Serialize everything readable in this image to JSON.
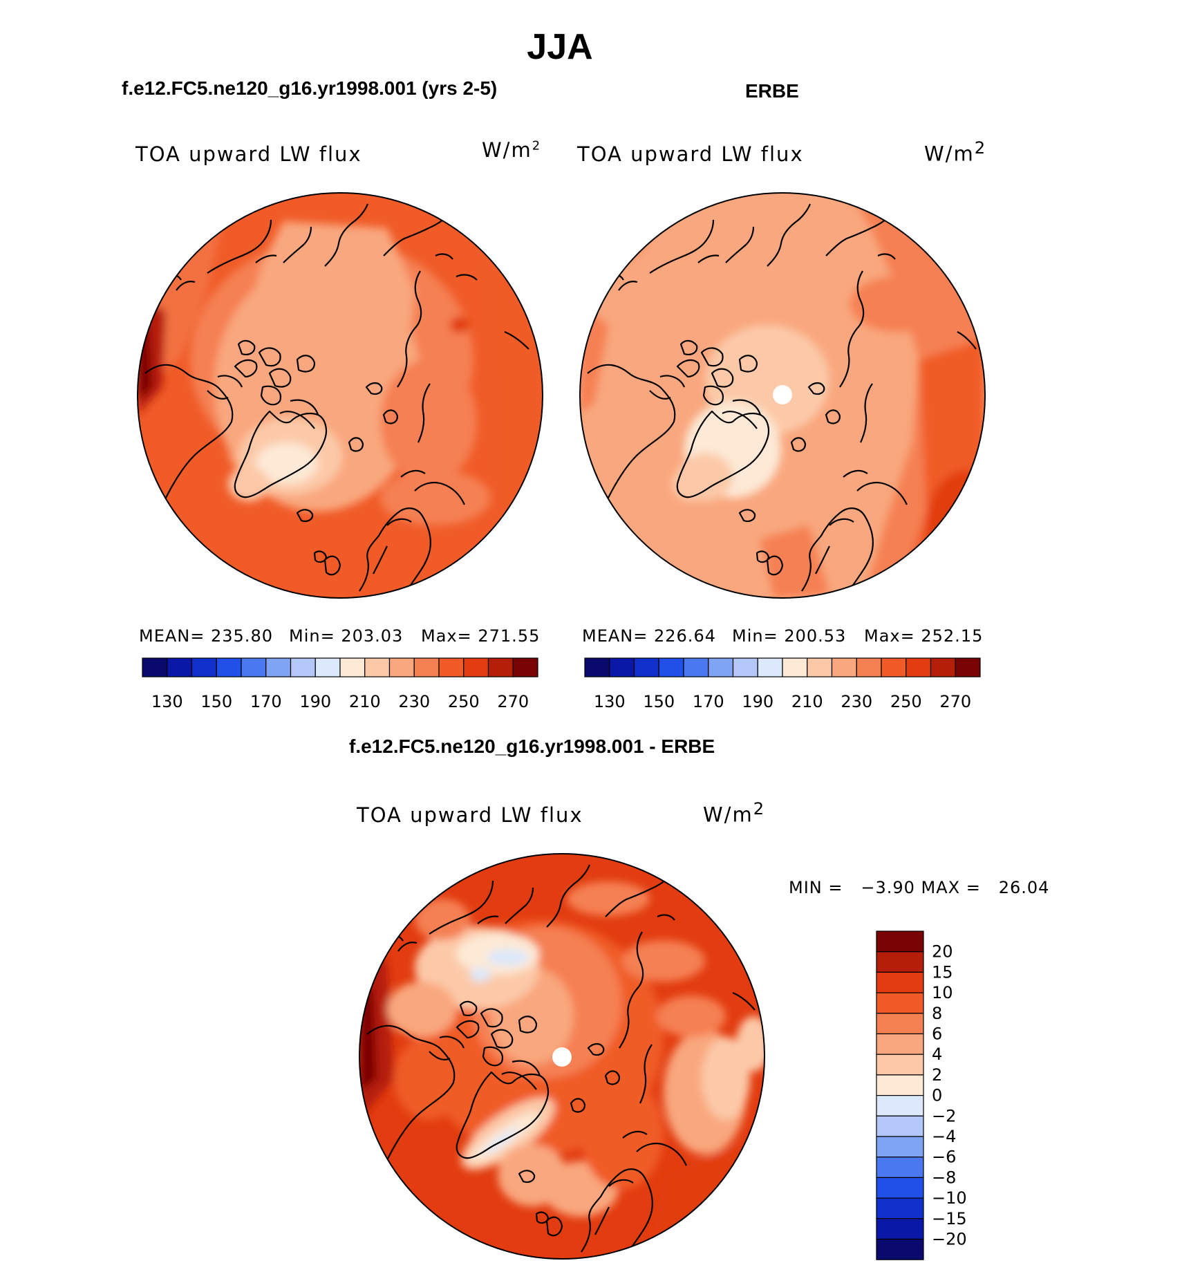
{
  "figure": {
    "title": "JJA",
    "panel_left": {
      "case_title": "f.e12.FC5.ne120_g16.yr1998.001 (yrs 2-5)",
      "variable": "TOA upward LW flux",
      "units": "W/m",
      "units_sup": "2",
      "mean_label": "MEAN=",
      "mean": "235.80",
      "min_label": "Min=",
      "min": "203.03",
      "max_label": "Max=",
      "max": "271.55"
    },
    "panel_right": {
      "case_title": "ERBE",
      "variable": "TOA upward LW flux",
      "units": "W/m",
      "units_sup": "2",
      "mean_label": "MEAN=",
      "mean": "226.64",
      "min_label": "Min=",
      "min": "200.53",
      "max_label": "Max=",
      "max": "252.15"
    },
    "panel_diff": {
      "case_title": "f.e12.FC5.ne120_g16.yr1998.001 - ERBE",
      "variable": "TOA upward LW flux",
      "units": "W/m",
      "units_sup": "2",
      "minmax_text": "MIN =   −3.90 MAX =   26.04"
    }
  },
  "colorbar_abs": {
    "colors": [
      "#0a0a6e",
      "#0a18a8",
      "#1030cc",
      "#2050e8",
      "#4a78f0",
      "#7fa4f4",
      "#b3c8f8",
      "#dce8fb",
      "#fde9d6",
      "#fcc9a8",
      "#f9a77e",
      "#f58052",
      "#f05b28",
      "#e23c10",
      "#b51e08",
      "#7a0404"
    ],
    "tick_labels": [
      "130",
      "150",
      "170",
      "190",
      "210",
      "230",
      "250",
      "270"
    ]
  },
  "colorbar_diff": {
    "colors": [
      "#7a0404",
      "#b51e08",
      "#e23c10",
      "#f05b28",
      "#f58052",
      "#f9a77e",
      "#fcc9a8",
      "#fde9d6",
      "#dce8fb",
      "#b3c8f8",
      "#7fa4f4",
      "#4a78f0",
      "#2050e8",
      "#1030cc",
      "#0a18a8",
      "#0a0a6e"
    ],
    "tick_labels": [
      "20",
      "15",
      "10",
      "8",
      "6",
      "4",
      "2",
      "0",
      "−2",
      "−4",
      "−6",
      "−8",
      "−10",
      "−15",
      "−20"
    ]
  },
  "chart_data": [
    {
      "type": "heatmap",
      "projection": "polar-stereographic (north pole)",
      "title": "f.e12.FC5.ne120_g16.yr1998.001 (yrs 2-5)",
      "season": "JJA",
      "variable": "TOA upward LW flux",
      "units": "W/m2",
      "mean": 235.8,
      "min": 203.03,
      "max": 271.55,
      "contour_levels": [
        130,
        140,
        150,
        160,
        170,
        180,
        190,
        200,
        210,
        220,
        230,
        240,
        250,
        260,
        270
      ],
      "background_level": 250
    },
    {
      "type": "heatmap",
      "projection": "polar-stereographic (north pole)",
      "title": "ERBE",
      "season": "JJA",
      "variable": "TOA upward LW flux",
      "units": "W/m2",
      "mean": 226.64,
      "min": 200.53,
      "max": 252.15,
      "contour_levels": [
        130,
        140,
        150,
        160,
        170,
        180,
        190,
        200,
        210,
        220,
        230,
        240,
        250,
        260,
        270
      ],
      "background_level": 230
    },
    {
      "type": "heatmap",
      "projection": "polar-stereographic (north pole)",
      "title": "f.e12.FC5.ne120_g16.yr1998.001 - ERBE",
      "season": "JJA",
      "variable": "TOA upward LW flux",
      "units": "W/m2",
      "min": -3.9,
      "max": 26.04,
      "contour_levels": [
        -20,
        -15,
        -10,
        -8,
        -6,
        -4,
        -2,
        0,
        2,
        4,
        6,
        8,
        10,
        15,
        20
      ],
      "background_level": 10
    }
  ]
}
